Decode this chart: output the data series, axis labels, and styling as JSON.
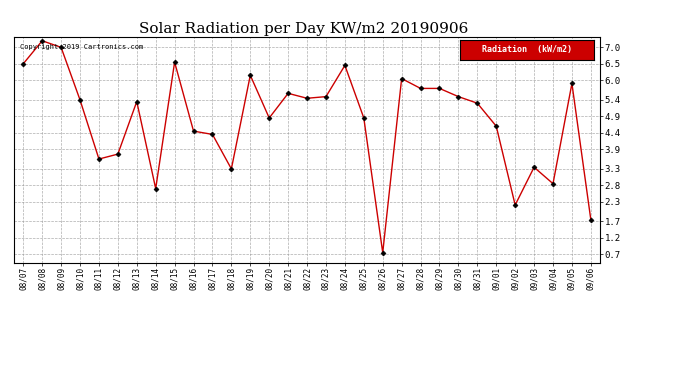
{
  "title": "Solar Radiation per Day KW/m2 20190906",
  "copyright": "Copyright 2019 Cartronics.com",
  "legend_label": "Radiation  (kW/m2)",
  "dates": [
    "08/07",
    "08/08",
    "08/09",
    "08/10",
    "08/11",
    "08/12",
    "08/13",
    "08/14",
    "08/15",
    "08/16",
    "08/17",
    "08/18",
    "08/19",
    "08/20",
    "08/21",
    "08/22",
    "08/23",
    "08/24",
    "08/25",
    "08/26",
    "08/27",
    "08/28",
    "08/29",
    "08/30",
    "08/31",
    "09/01",
    "09/02",
    "09/03",
    "09/04",
    "09/05",
    "09/06"
  ],
  "values": [
    6.5,
    7.2,
    7.0,
    5.4,
    3.6,
    3.75,
    5.35,
    2.7,
    6.55,
    4.45,
    4.35,
    3.3,
    6.15,
    4.85,
    5.6,
    5.45,
    5.5,
    6.45,
    4.85,
    0.75,
    6.05,
    5.75,
    5.75,
    5.5,
    5.3,
    4.6,
    2.2,
    3.35,
    2.85,
    5.9,
    1.75
  ],
  "line_color": "#cc0000",
  "marker_color": "#000000",
  "background_color": "#ffffff",
  "plot_bg_color": "#ffffff",
  "grid_color": "#999999",
  "ylim": [
    0.45,
    7.3
  ],
  "yticks": [
    0.7,
    1.2,
    1.7,
    2.3,
    2.8,
    3.3,
    3.9,
    4.4,
    4.9,
    5.4,
    6.0,
    6.5,
    7.0
  ],
  "title_fontsize": 11,
  "legend_bg": "#cc0000",
  "legend_text_color": "#ffffff",
  "border_color": "#000000"
}
